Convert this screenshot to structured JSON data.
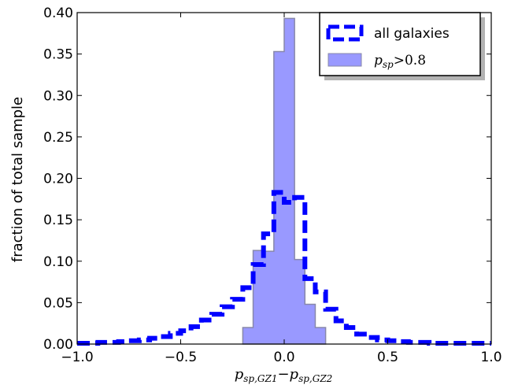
{
  "chart_data": {
    "type": "histogram",
    "xlabel": "p_{sp,GZ1}−p_{sp,GZ2}",
    "xlabel_parts": {
      "a": "p",
      "a_sub": "sp,GZ1",
      "minus": "−",
      "b": "p",
      "b_sub": "sp,GZ2"
    },
    "ylabel": "fraction of total sample",
    "xlim": [
      -1.0,
      1.0
    ],
    "ylim": [
      0.0,
      0.4
    ],
    "xticks": [
      -1.0,
      -0.5,
      0.0,
      0.5,
      1.0
    ],
    "xtick_labels": [
      "−1.0",
      "−0.5",
      "0.0",
      "0.5",
      "1.0"
    ],
    "yticks": [
      0.0,
      0.05,
      0.1,
      0.15,
      0.2,
      0.25,
      0.3,
      0.35,
      0.4
    ],
    "ytick_labels": [
      "0.00",
      "0.05",
      "0.10",
      "0.15",
      "0.20",
      "0.25",
      "0.30",
      "0.35",
      "0.40"
    ],
    "legend_position": "top-right",
    "series": [
      {
        "name": "all galaxies",
        "style": "dashed-step",
        "color": "#0000ff",
        "bin_edges": [
          -1.0,
          -0.95,
          -0.9,
          -0.85,
          -0.8,
          -0.75,
          -0.7,
          -0.65,
          -0.6,
          -0.55,
          -0.5,
          -0.45,
          -0.4,
          -0.35,
          -0.3,
          -0.25,
          -0.2,
          -0.15,
          -0.1,
          -0.05,
          0.0,
          0.05,
          0.1,
          0.15,
          0.2,
          0.25,
          0.3,
          0.35,
          0.4,
          0.45,
          0.5,
          0.55,
          0.6,
          0.65,
          0.7,
          0.75,
          0.8,
          0.85,
          0.9,
          0.95,
          1.0
        ],
        "values": [
          0.001,
          0.001,
          0.002,
          0.002,
          0.003,
          0.004,
          0.005,
          0.007,
          0.009,
          0.013,
          0.016,
          0.021,
          0.029,
          0.036,
          0.045,
          0.054,
          0.068,
          0.096,
          0.133,
          0.183,
          0.171,
          0.177,
          0.079,
          0.063,
          0.042,
          0.028,
          0.02,
          0.012,
          0.008,
          0.005,
          0.004,
          0.003,
          0.002,
          0.002,
          0.001,
          0.001,
          0.001,
          0.001,
          0.001,
          0.001
        ]
      },
      {
        "name": "p_sp>0.8",
        "label_parts": {
          "p": "p",
          "sub": "sp",
          "rest": ">0.8"
        },
        "style": "filled-step",
        "color": "#9999ff",
        "edge_color": "#8888aa",
        "bin_edges": [
          -0.2,
          -0.15,
          -0.1,
          -0.05,
          0.0,
          0.05,
          0.1,
          0.15,
          0.2
        ],
        "values": [
          0.02,
          0.113,
          0.112,
          0.353,
          0.393,
          0.102,
          0.048,
          0.02
        ]
      }
    ]
  }
}
